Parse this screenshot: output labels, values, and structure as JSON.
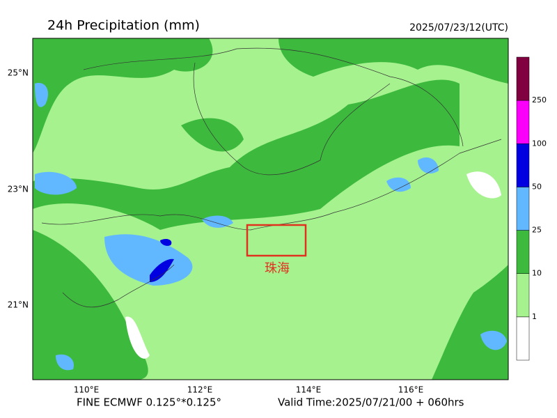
{
  "header": {
    "title": "24h Precipitation (mm)",
    "time": "2025/07/23/12(UTC)"
  },
  "map": {
    "lat_labels": [
      "25°N",
      "23°N",
      "21°N"
    ],
    "lon_labels": [
      "110°E",
      "112°E",
      "114°E",
      "116°E"
    ],
    "annotation": "珠海"
  },
  "colorbar": {
    "colors": [
      "#ffffff",
      "#a6f28f",
      "#3dba3d",
      "#61b8ff",
      "#0000e1",
      "#fa00fa",
      "#800040"
    ],
    "labels": [
      "1",
      "10",
      "25",
      "50",
      "100",
      "250"
    ]
  },
  "footer": {
    "model": "FINE ECMWF 0.125°*0.125°",
    "valid": "Valid Time:2025/07/21/00 + 060hrs"
  }
}
